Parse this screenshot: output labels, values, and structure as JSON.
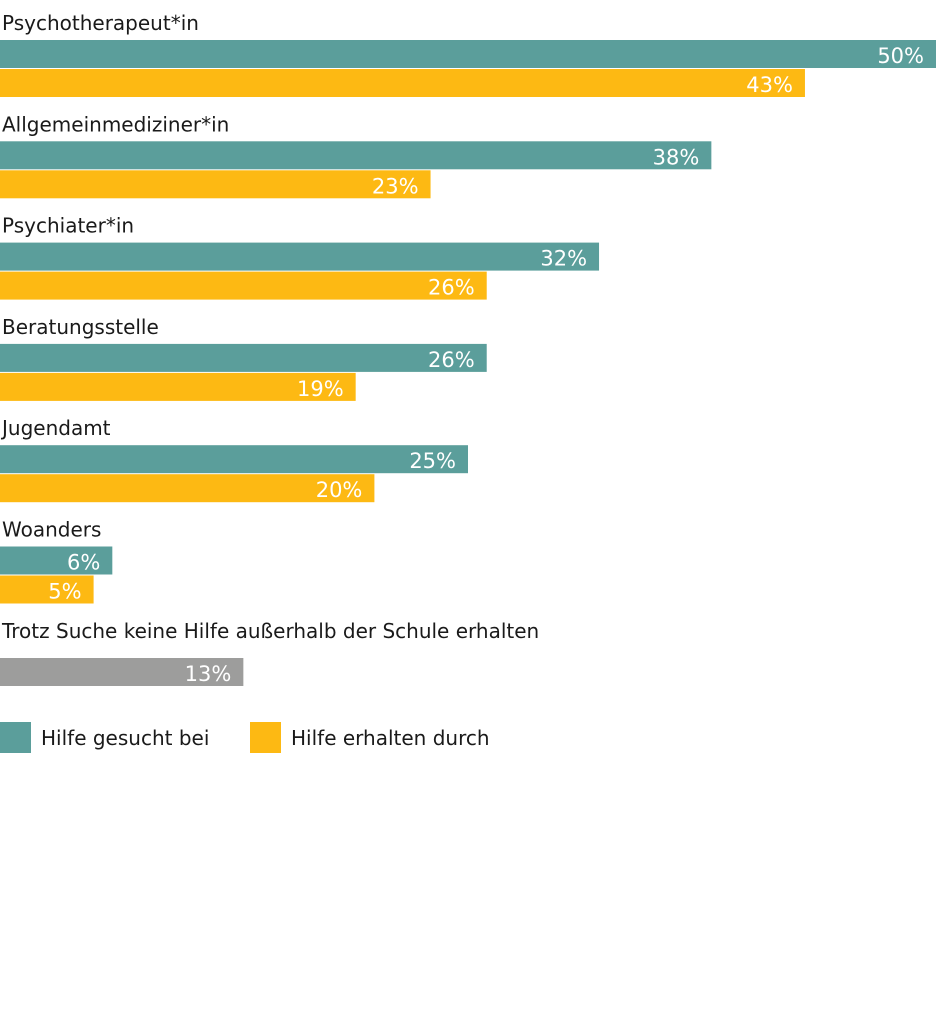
{
  "chart_data": {
    "type": "bar",
    "orientation": "horizontal",
    "categories": [
      "Psychotherapeut*in",
      "Allgemeinmediziner*in",
      "Psychiater*in",
      "Beratungsstelle",
      "Jugendamt",
      "Woanders"
    ],
    "series": [
      {
        "name": "Hilfe gesucht bei",
        "color": "#5b9e9b",
        "values": [
          50,
          38,
          32,
          26,
          25,
          6
        ],
        "labels": [
          "50%",
          "38%",
          "32%",
          "26%",
          "25%",
          "6%"
        ]
      },
      {
        "name": "Hilfe erhalten durch",
        "color": "#fdb913",
        "values": [
          43,
          23,
          26,
          19,
          20,
          5
        ],
        "labels": [
          "43%",
          "23%",
          "26%",
          "19%",
          "20%",
          "5%"
        ]
      }
    ],
    "extra": {
      "label": "Trotz Suche keine Hilfe außerhalb der Schule erhalten",
      "value": 13,
      "value_label": "13%",
      "color": "#9d9d9c"
    },
    "xlim": [
      0,
      50
    ],
    "unit": "%",
    "grid": false,
    "legend_position": "bottom-left"
  }
}
